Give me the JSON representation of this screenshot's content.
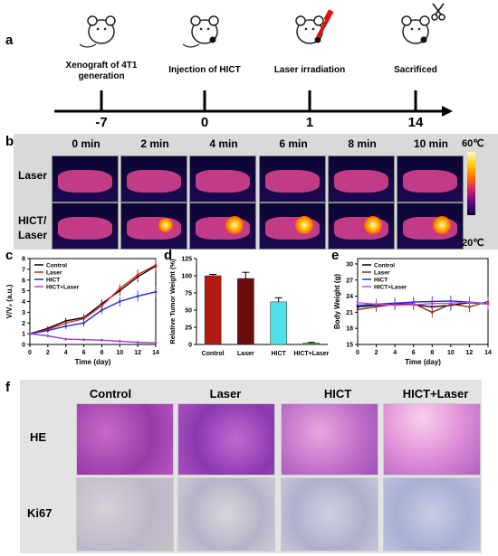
{
  "panels": {
    "a": "a",
    "b": "b",
    "c": "c",
    "d": "d",
    "e": "e",
    "f": "f"
  },
  "timeline": {
    "steps": [
      {
        "label": "Xenograft of 4T1 generation",
        "day": "-7",
        "icon": "mouse-icon"
      },
      {
        "label": "Injection of HICT",
        "day": "0",
        "icon": "mouse-injection-icon"
      },
      {
        "label": "Laser irradiation",
        "day": "1",
        "icon": "mouse-laser-icon"
      },
      {
        "label": "Sacrificed",
        "day": "14",
        "icon": "mouse-scissors-icon"
      }
    ]
  },
  "thermal": {
    "times": [
      "0 min",
      "2 min",
      "4 min",
      "6 min",
      "8 min",
      "10 min"
    ],
    "rows": [
      "Laser",
      "HICT/\nLaser"
    ],
    "hict_laser_intensity": [
      0.0,
      0.55,
      0.85,
      0.8,
      0.85,
      0.9
    ],
    "colorbar_max": "60℃",
    "colorbar_min": "20℃"
  },
  "chart_data": [
    {
      "type": "line",
      "ylabel": "V/V₀ (a.u.)",
      "xlabel": "Time (day)",
      "xlim": [
        0,
        14
      ],
      "ylim": [
        0,
        8
      ],
      "xticks": [
        0,
        2,
        4,
        6,
        8,
        10,
        12,
        14
      ],
      "yticks": [
        0,
        1,
        2,
        3,
        4,
        5,
        6,
        7,
        8
      ],
      "legend": "top-left",
      "x": [
        0,
        2,
        4,
        6,
        8,
        10,
        12,
        14
      ],
      "series": [
        {
          "name": "Control",
          "color": "#000000",
          "values": [
            1.0,
            1.5,
            2.2,
            2.5,
            3.8,
            5.0,
            6.3,
            7.3
          ]
        },
        {
          "name": "Laser",
          "color": "#e0201a",
          "values": [
            1.0,
            1.4,
            2.0,
            2.4,
            3.6,
            5.2,
            6.5,
            7.4
          ]
        },
        {
          "name": "HICT",
          "color": "#1f2bd6",
          "values": [
            1.0,
            1.3,
            1.7,
            2.0,
            3.2,
            4.0,
            4.5,
            4.9
          ]
        },
        {
          "name": "HICT+Laser",
          "color": "#a23cd0",
          "values": [
            1.0,
            0.8,
            0.5,
            0.45,
            0.4,
            0.3,
            0.2,
            0.15
          ]
        }
      ]
    },
    {
      "type": "bar",
      "ylabel": "Relative Tumor Weight (%)",
      "categories": [
        "Control",
        "Laser",
        "HICT",
        "HICT+Laser"
      ],
      "values": [
        100,
        96,
        62,
        2
      ],
      "errors": [
        2,
        9,
        6,
        1
      ],
      "ylim": [
        0,
        125
      ],
      "yticks": [
        0,
        25,
        50,
        75,
        100,
        125
      ],
      "colors": [
        "#b01a10",
        "#6e0c0c",
        "#4fe0e8",
        "#3aa63a"
      ]
    },
    {
      "type": "line",
      "ylabel": "Body Weight (g)",
      "xlabel": "Time (day)",
      "xlim": [
        0,
        14
      ],
      "ylim": [
        15,
        31
      ],
      "xticks": [
        0,
        2,
        4,
        6,
        8,
        10,
        12,
        14
      ],
      "yticks": [
        15,
        18,
        21,
        24,
        27,
        30
      ],
      "legend": "top-left",
      "x": [
        0,
        2,
        4,
        6,
        8,
        10,
        12,
        14
      ],
      "series": [
        {
          "name": "Control",
          "color": "#000000",
          "values": [
            22.0,
            22.3,
            22.6,
            22.4,
            22.0,
            22.3,
            22.8,
            22.5
          ]
        },
        {
          "name": "Laser",
          "color": "#8b2a10",
          "values": [
            21.5,
            22.0,
            22.5,
            22.6,
            21.0,
            22.5,
            22.0,
            23.0
          ]
        },
        {
          "name": "HICT",
          "color": "#1f2bd6",
          "values": [
            22.3,
            22.5,
            22.7,
            22.9,
            23.0,
            23.1,
            22.9,
            22.6
          ]
        },
        {
          "name": "HICT+Laser",
          "color": "#c050d8",
          "values": [
            22.8,
            22.5,
            22.3,
            22.4,
            22.6,
            22.7,
            22.9,
            22.5
          ]
        }
      ]
    }
  ],
  "histology": {
    "columns": [
      "Control",
      "Laser",
      "HICT",
      "HICT+Laser"
    ],
    "rows": [
      "HE",
      "Ki67"
    ]
  }
}
